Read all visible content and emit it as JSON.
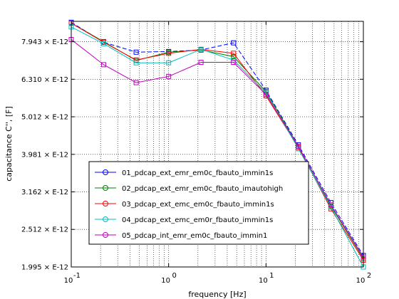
{
  "chart_data": {
    "type": "line",
    "xscale": "log",
    "yscale": "log",
    "xlim": [
      0.1,
      100
    ],
    "ylim": [
      1.995e-12,
      9e-12
    ],
    "xlabel": "frequency [Hz]",
    "ylabel": "capacitance C'', [F]",
    "grid": true,
    "legend_position": "bottom-left",
    "xticks": [
      {
        "v": 0.1,
        "base": "10",
        "exp": "-1"
      },
      {
        "v": 1,
        "base": "10",
        "exp": "0"
      },
      {
        "v": 10,
        "base": "10",
        "exp": "1"
      },
      {
        "v": 100,
        "base": "10",
        "exp": "2"
      }
    ],
    "yticks": [
      {
        "v": 1.995e-12,
        "label": "1.995 × E-12"
      },
      {
        "v": 2.512e-12,
        "label": "2.512 × E-12"
      },
      {
        "v": 3.162e-12,
        "label": "3.162 × E-12"
      },
      {
        "v": 3.981e-12,
        "label": "3.981 × E-12"
      },
      {
        "v": 5.012e-12,
        "label": "5.012 × E-12"
      },
      {
        "v": 6.31e-12,
        "label": "6.310 × E-12"
      },
      {
        "v": 7.943e-12,
        "label": "7.943 × E-12"
      }
    ],
    "x": [
      0.1,
      0.215,
      0.464,
      1.0,
      2.15,
      4.64,
      10,
      21.5,
      46.4,
      100
    ],
    "series": [
      {
        "name": "01_pdcap_ext_emr_em0c_fbauto_immin1s",
        "color": "#0000ff",
        "y": [
          8.95e-12,
          7.92e-12,
          7.45e-12,
          7.48e-12,
          7.55e-12,
          7.89e-12,
          5.9e-12,
          4.22e-12,
          2.96e-12,
          2.14e-12
        ]
      },
      {
        "name": "02_pdcap_ext_emr_em0c_fbauto_imautohigh",
        "color": "#008000",
        "y": [
          8.9e-12,
          7.95e-12,
          7.08e-12,
          7.45e-12,
          7.55e-12,
          7.25e-12,
          5.85e-12,
          4.18e-12,
          2.9e-12,
          2.1e-12
        ]
      },
      {
        "name": "03_pdcap_ext_emc_em0c_fbauto_immin1s",
        "color": "#ff0000",
        "y": [
          8.9e-12,
          7.92e-12,
          7.1e-12,
          7.4e-12,
          7.58e-12,
          7.4e-12,
          5.7e-12,
          4.15e-12,
          2.85e-12,
          2.08e-12
        ]
      },
      {
        "name": "04_pdcap_ext_emc_em0r_fbauto_immin1s",
        "color": "#00bfbf",
        "y": [
          8.7e-12,
          7.85e-12,
          6.98e-12,
          6.98e-12,
          7.58e-12,
          7.1e-12,
          5.8e-12,
          4.12e-12,
          2.88e-12,
          1.995e-12
        ]
      },
      {
        "name": "05_pdcap_int_emr_em0c_fbauto_immin1",
        "color": "#bf00bf",
        "y": [
          8.05e-12,
          6.9e-12,
          6.18e-12,
          6.42e-12,
          7e-12,
          7e-12,
          5.75e-12,
          4.18e-12,
          2.92e-12,
          2.12e-12
        ]
      }
    ]
  }
}
